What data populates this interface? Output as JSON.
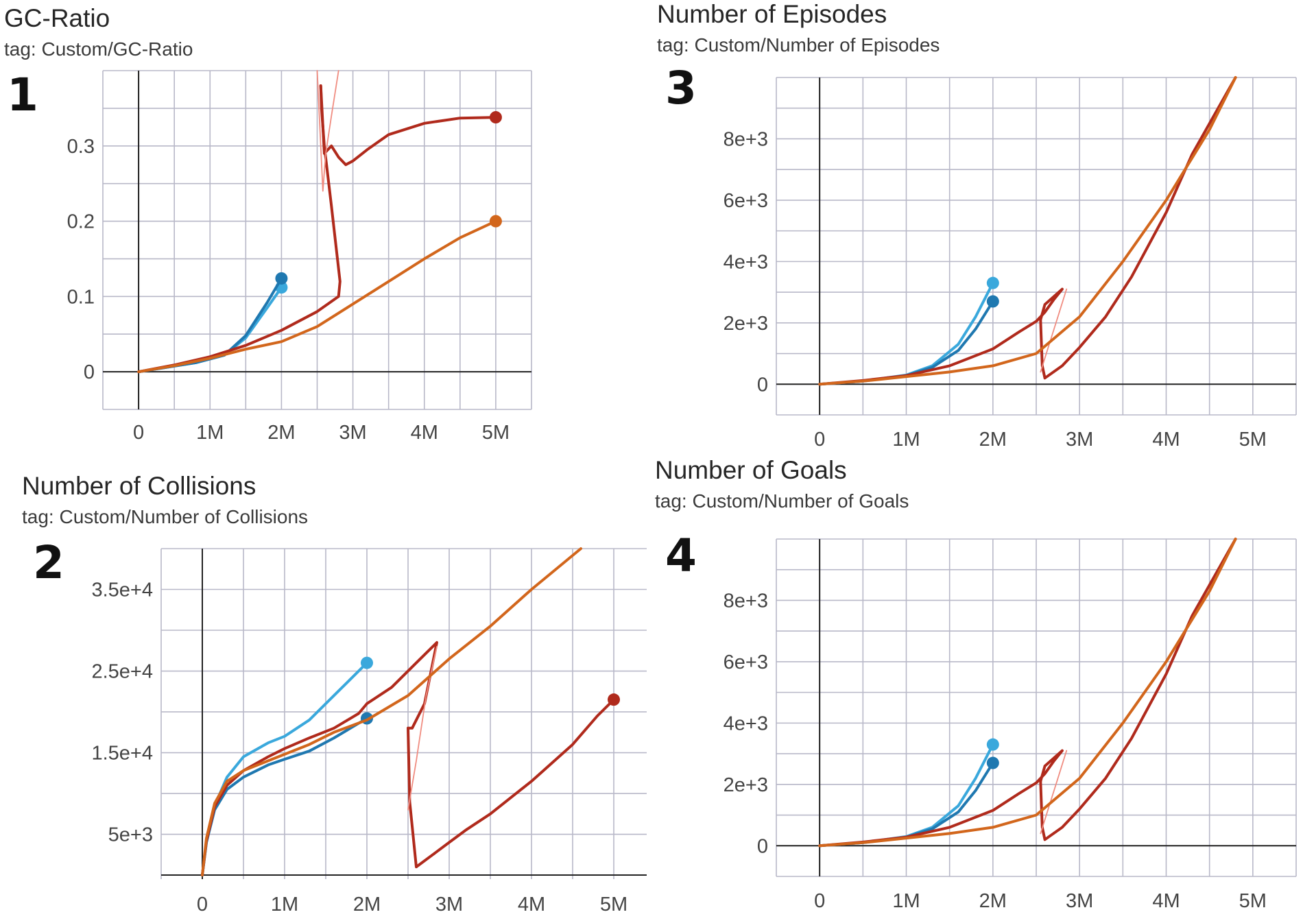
{
  "colors": {
    "light_blue": "#3aa8dc",
    "dark_blue": "#1f78b0",
    "light_red": "#f08c80",
    "dark_red": "#b02a1c",
    "orange": "#d2661c",
    "grid": "#b8b8c8",
    "axis": "#222222"
  },
  "chart_data": [
    {
      "id": "gc",
      "number": "1",
      "type": "line",
      "title": "GC-Ratio",
      "tag": "tag: Custom/GC-Ratio",
      "xlabel": "",
      "ylabel": "",
      "xlim": [
        -0.5,
        5.5
      ],
      "ylim": [
        -0.05,
        0.4
      ],
      "grid": true,
      "xticks": [
        {
          "v": 0,
          "label": "0"
        },
        {
          "v": 1,
          "label": "1M"
        },
        {
          "v": 2,
          "label": "2M"
        },
        {
          "v": 3,
          "label": "3M"
        },
        {
          "v": 4,
          "label": "4M"
        },
        {
          "v": 5,
          "label": "5M"
        }
      ],
      "yticks": [
        {
          "v": 0,
          "label": "0"
        },
        {
          "v": 0.1,
          "label": "0.1"
        },
        {
          "v": 0.2,
          "label": "0.2"
        },
        {
          "v": 0.3,
          "label": "0.3"
        }
      ],
      "series": [
        {
          "name": "run-light-blue",
          "color": "light_blue",
          "end_marker": true,
          "x": [
            0,
            0.4,
            0.8,
            1.2,
            1.5,
            1.8,
            2.0
          ],
          "y": [
            0,
            0.006,
            0.012,
            0.022,
            0.045,
            0.085,
            0.112
          ]
        },
        {
          "name": "run-dark-blue",
          "color": "dark_blue",
          "end_marker": true,
          "x": [
            0,
            0.4,
            0.8,
            1.2,
            1.5,
            1.8,
            2.0
          ],
          "y": [
            0,
            0.006,
            0.012,
            0.022,
            0.048,
            0.092,
            0.124
          ]
        },
        {
          "name": "run-dark-red-seg1",
          "color": "dark_red",
          "end_marker": false,
          "x": [
            0,
            0.5,
            1.0,
            1.5,
            2.0,
            2.5,
            2.8,
            2.82,
            2.7,
            2.6,
            2.56,
            2.55
          ],
          "y": [
            0,
            0.009,
            0.02,
            0.035,
            0.055,
            0.08,
            0.1,
            0.12,
            0.22,
            0.3,
            0.35,
            0.38
          ]
        },
        {
          "name": "run-dark-red-seg2",
          "color": "dark_red",
          "end_marker": true,
          "x": [
            2.55,
            2.6,
            2.7,
            2.8,
            2.9,
            3.0,
            3.2,
            3.5,
            4.0,
            4.5,
            5.0
          ],
          "y": [
            0.38,
            0.29,
            0.3,
            0.285,
            0.275,
            0.28,
            0.295,
            0.315,
            0.33,
            0.337,
            0.338
          ]
        },
        {
          "name": "run-light-red-thin",
          "color": "light_red",
          "end_marker": false,
          "thin": true,
          "x": [
            2.5,
            2.55,
            2.58,
            2.62,
            2.7,
            2.8
          ],
          "y": [
            0.4,
            0.3,
            0.24,
            0.29,
            0.34,
            0.4
          ]
        },
        {
          "name": "run-orange",
          "color": "orange",
          "end_marker": true,
          "x": [
            0,
            0.5,
            1.0,
            1.5,
            2.0,
            2.5,
            3.0,
            3.5,
            4.0,
            4.5,
            5.0
          ],
          "y": [
            0,
            0.008,
            0.018,
            0.03,
            0.04,
            0.06,
            0.09,
            0.12,
            0.15,
            0.178,
            0.2
          ]
        }
      ]
    },
    {
      "id": "coll",
      "number": "2",
      "type": "line",
      "title": "Number of Collisions",
      "tag": "tag: Custom/Number of Collisions",
      "xlabel": "",
      "ylabel": "",
      "xlim": [
        -0.5,
        5.4
      ],
      "ylim": [
        -500,
        40000
      ],
      "grid": true,
      "xticks": [
        {
          "v": 0,
          "label": "0"
        },
        {
          "v": 1,
          "label": "1M"
        },
        {
          "v": 2,
          "label": "2M"
        },
        {
          "v": 3,
          "label": "3M"
        },
        {
          "v": 4,
          "label": "4M"
        },
        {
          "v": 5,
          "label": "5M"
        }
      ],
      "yticks": [
        {
          "v": 5000,
          "label": "5e+3"
        },
        {
          "v": 15000,
          "label": "1.5e+4"
        },
        {
          "v": 25000,
          "label": "2.5e+4"
        },
        {
          "v": 35000,
          "label": "3.5e+4"
        }
      ],
      "series": [
        {
          "name": "run-light-blue",
          "color": "light_blue",
          "end_marker": true,
          "x": [
            0,
            0.05,
            0.15,
            0.3,
            0.5,
            0.8,
            1.0,
            1.3,
            1.6,
            1.8,
            2.0
          ],
          "y": [
            0,
            4000,
            8500,
            12000,
            14500,
            16200,
            17000,
            19000,
            22000,
            24000,
            26000
          ]
        },
        {
          "name": "run-dark-blue",
          "color": "dark_blue",
          "end_marker": true,
          "x": [
            0,
            0.05,
            0.15,
            0.3,
            0.5,
            0.8,
            1.0,
            1.3,
            1.6,
            1.8,
            2.0
          ],
          "y": [
            0,
            4000,
            8000,
            10500,
            12000,
            13500,
            14200,
            15200,
            16800,
            18000,
            19200
          ]
        },
        {
          "name": "run-dark-red-seg1",
          "color": "dark_red",
          "end_marker": false,
          "x": [
            0,
            0.05,
            0.15,
            0.3,
            0.5,
            0.8,
            1.0,
            1.3,
            1.6,
            1.9,
            2.0,
            2.3,
            2.6,
            2.85,
            2.7,
            2.55,
            2.5
          ],
          "y": [
            0,
            4200,
            8400,
            11000,
            12800,
            14500,
            15500,
            16800,
            18000,
            19800,
            21000,
            23000,
            26000,
            28500,
            21000,
            18000,
            18000
          ]
        },
        {
          "name": "run-dark-red-seg2",
          "color": "dark_red",
          "end_marker": true,
          "x": [
            2.5,
            2.52,
            2.6,
            2.8,
            3.0,
            3.2,
            3.5,
            4.0,
            4.5,
            4.8,
            5.0
          ],
          "y": [
            18000,
            9000,
            1000,
            2500,
            4000,
            5500,
            7500,
            11500,
            16000,
            19500,
            21500
          ]
        },
        {
          "name": "run-light-red-thin",
          "color": "light_red",
          "end_marker": false,
          "thin": true,
          "x": [
            2.5,
            2.6,
            2.72,
            2.85
          ],
          "y": [
            8000,
            14000,
            22000,
            28000
          ]
        },
        {
          "name": "run-orange",
          "color": "orange",
          "end_marker": false,
          "x": [
            0,
            0.05,
            0.15,
            0.3,
            0.5,
            0.8,
            1.0,
            1.3,
            1.6,
            2.0,
            2.5,
            3.0,
            3.5,
            4.0,
            4.6
          ],
          "y": [
            0,
            4500,
            8800,
            11500,
            12800,
            14000,
            14800,
            16000,
            17500,
            19000,
            22000,
            26500,
            30500,
            35000,
            40000
          ]
        }
      ]
    },
    {
      "id": "epi",
      "number": "3",
      "type": "line",
      "title": "Number of Episodes",
      "tag": "tag: Custom/Number of Episodes",
      "xlabel": "",
      "ylabel": "",
      "xlim": [
        -0.5,
        5.5
      ],
      "ylim": [
        -1000,
        10000
      ],
      "grid": true,
      "xticks": [
        {
          "v": 0,
          "label": "0"
        },
        {
          "v": 1,
          "label": "1M"
        },
        {
          "v": 2,
          "label": "2M"
        },
        {
          "v": 3,
          "label": "3M"
        },
        {
          "v": 4,
          "label": "4M"
        },
        {
          "v": 5,
          "label": "5M"
        }
      ],
      "yticks": [
        {
          "v": 0,
          "label": "0"
        },
        {
          "v": 2000,
          "label": "2e+3"
        },
        {
          "v": 4000,
          "label": "4e+3"
        },
        {
          "v": 6000,
          "label": "6e+3"
        },
        {
          "v": 8000,
          "label": "8e+3"
        }
      ],
      "series": [
        {
          "name": "run-light-blue",
          "color": "light_blue",
          "end_marker": true,
          "x": [
            0,
            0.5,
            1.0,
            1.3,
            1.6,
            1.8,
            2.0
          ],
          "y": [
            0,
            100,
            300,
            600,
            1300,
            2200,
            3300
          ]
        },
        {
          "name": "run-dark-blue",
          "color": "dark_blue",
          "end_marker": true,
          "x": [
            0,
            0.5,
            1.0,
            1.3,
            1.6,
            1.8,
            2.0
          ],
          "y": [
            0,
            100,
            280,
            550,
            1100,
            1800,
            2700
          ]
        },
        {
          "name": "run-dark-red-seg1",
          "color": "dark_red",
          "end_marker": false,
          "x": [
            0,
            0.5,
            1.0,
            1.5,
            2.0,
            2.3,
            2.5,
            2.6,
            2.7,
            2.8,
            2.6,
            2.55
          ],
          "y": [
            0,
            120,
            280,
            600,
            1150,
            1700,
            2050,
            2350,
            2750,
            3100,
            2600,
            2100
          ]
        },
        {
          "name": "run-dark-red-seg2",
          "color": "dark_red",
          "end_marker": false,
          "x": [
            2.55,
            2.57,
            2.6,
            2.8,
            3.0,
            3.3,
            3.6,
            4.0,
            4.3,
            4.6,
            4.8
          ],
          "y": [
            2100,
            600,
            200,
            600,
            1200,
            2200,
            3500,
            5600,
            7500,
            9000,
            10000
          ]
        },
        {
          "name": "run-light-red-thin",
          "color": "light_red",
          "end_marker": false,
          "thin": true,
          "x": [
            2.55,
            2.65,
            2.75,
            2.85
          ],
          "y": [
            400,
            1300,
            2200,
            3100
          ]
        },
        {
          "name": "run-orange",
          "color": "orange",
          "end_marker": false,
          "x": [
            0,
            0.5,
            1.0,
            1.5,
            2.0,
            2.5,
            3.0,
            3.5,
            4.0,
            4.5,
            4.8
          ],
          "y": [
            0,
            100,
            250,
            400,
            600,
            1000,
            2200,
            4000,
            6000,
            8300,
            10000
          ]
        }
      ]
    },
    {
      "id": "goals",
      "number": "4",
      "type": "line",
      "title": "Number of Goals",
      "tag": "tag: Custom/Number of Goals",
      "xlabel": "",
      "ylabel": "",
      "xlim": [
        -0.5,
        5.5
      ],
      "ylim": [
        -1000,
        10000
      ],
      "grid": true,
      "xticks": [
        {
          "v": 0,
          "label": "0"
        },
        {
          "v": 1,
          "label": "1M"
        },
        {
          "v": 2,
          "label": "2M"
        },
        {
          "v": 3,
          "label": "3M"
        },
        {
          "v": 4,
          "label": "4M"
        },
        {
          "v": 5,
          "label": "5M"
        }
      ],
      "yticks": [
        {
          "v": 0,
          "label": "0"
        },
        {
          "v": 2000,
          "label": "2e+3"
        },
        {
          "v": 4000,
          "label": "4e+3"
        },
        {
          "v": 6000,
          "label": "6e+3"
        },
        {
          "v": 8000,
          "label": "8e+3"
        }
      ],
      "series": [
        {
          "name": "run-light-blue",
          "color": "light_blue",
          "end_marker": true,
          "x": [
            0,
            0.5,
            1.0,
            1.3,
            1.6,
            1.8,
            2.0
          ],
          "y": [
            0,
            100,
            300,
            600,
            1300,
            2200,
            3300
          ]
        },
        {
          "name": "run-dark-blue",
          "color": "dark_blue",
          "end_marker": true,
          "x": [
            0,
            0.5,
            1.0,
            1.3,
            1.6,
            1.8,
            2.0
          ],
          "y": [
            0,
            100,
            280,
            550,
            1100,
            1800,
            2700
          ]
        },
        {
          "name": "run-dark-red-seg1",
          "color": "dark_red",
          "end_marker": false,
          "x": [
            0,
            0.5,
            1.0,
            1.5,
            2.0,
            2.3,
            2.5,
            2.6,
            2.7,
            2.8,
            2.6,
            2.55
          ],
          "y": [
            0,
            120,
            280,
            600,
            1150,
            1700,
            2050,
            2350,
            2750,
            3100,
            2600,
            2100
          ]
        },
        {
          "name": "run-dark-red-seg2",
          "color": "dark_red",
          "end_marker": false,
          "x": [
            2.55,
            2.57,
            2.6,
            2.8,
            3.0,
            3.3,
            3.6,
            4.0,
            4.3,
            4.6,
            4.8
          ],
          "y": [
            2100,
            600,
            200,
            600,
            1200,
            2200,
            3500,
            5600,
            7500,
            9000,
            10000
          ]
        },
        {
          "name": "run-light-red-thin",
          "color": "light_red",
          "end_marker": false,
          "thin": true,
          "x": [
            2.55,
            2.65,
            2.75,
            2.85
          ],
          "y": [
            400,
            1300,
            2200,
            3100
          ]
        },
        {
          "name": "run-orange",
          "color": "orange",
          "end_marker": false,
          "x": [
            0,
            0.5,
            1.0,
            1.5,
            2.0,
            2.5,
            3.0,
            3.5,
            4.0,
            4.5,
            4.8
          ],
          "y": [
            0,
            100,
            250,
            400,
            600,
            1000,
            2200,
            4000,
            6000,
            8300,
            10000
          ]
        }
      ]
    }
  ]
}
